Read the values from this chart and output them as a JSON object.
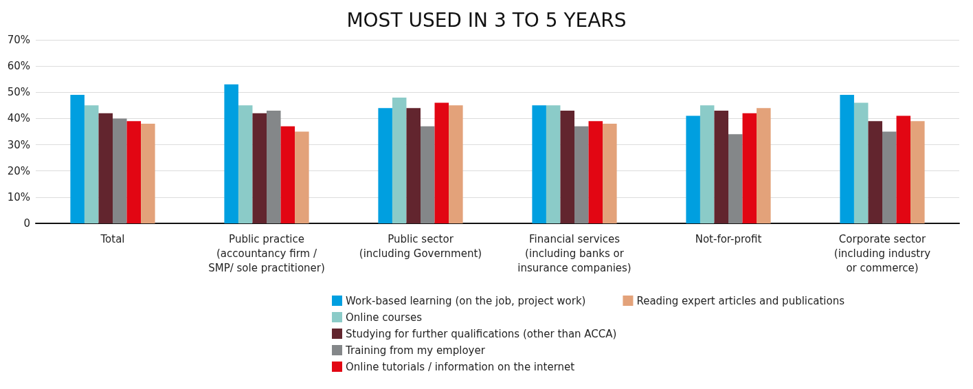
{
  "chart_data": {
    "type": "bar",
    "title": "MOST USED IN 3 TO 5 YEARS",
    "categories": [
      "Total",
      "Public practice\n(accountancy firm /\nSMP/ sole practitioner)",
      "Public sector\n(including Government)",
      "Financial services\n(including banks or\ninsurance companies)",
      "Not-for-profit",
      "Corporate sector\n(including industry\nor commerce)"
    ],
    "series": [
      {
        "name": "Work-based learning (on the job, project work)",
        "color": "#009fe0",
        "values": [
          49,
          53,
          44,
          45,
          41,
          49
        ]
      },
      {
        "name": "Online courses",
        "color": "#8bcbc8",
        "values": [
          45,
          45,
          48,
          45,
          45,
          46
        ]
      },
      {
        "name": "Studying for further qualifications (other than ACCA)",
        "color": "#62252e",
        "values": [
          42,
          42,
          44,
          43,
          43,
          39
        ]
      },
      {
        "name": "Training from my employer",
        "color": "#848789",
        "values": [
          40,
          43,
          37,
          37,
          34,
          35
        ]
      },
      {
        "name": "Online tutorials / information on the internet",
        "color": "#e20613",
        "values": [
          39,
          37,
          46,
          39,
          42,
          41
        ]
      },
      {
        "name": "Reading expert articles and publications",
        "color": "#e3a27a",
        "values": [
          38,
          35,
          45,
          38,
          44,
          39
        ]
      }
    ],
    "ylim": [
      0,
      70
    ],
    "yticks": [
      0,
      {
        "value": 10,
        "label": "10%"
      },
      {
        "value": 20,
        "label": "20%"
      },
      {
        "value": 30,
        "label": "30%"
      },
      {
        "value": 40,
        "label": "40%"
      },
      {
        "value": 50,
        "label": "50%"
      },
      {
        "value": 60,
        "label": "60%"
      },
      {
        "value": 70,
        "label": "70%"
      }
    ],
    "grid": "y",
    "legend": "bottom"
  }
}
